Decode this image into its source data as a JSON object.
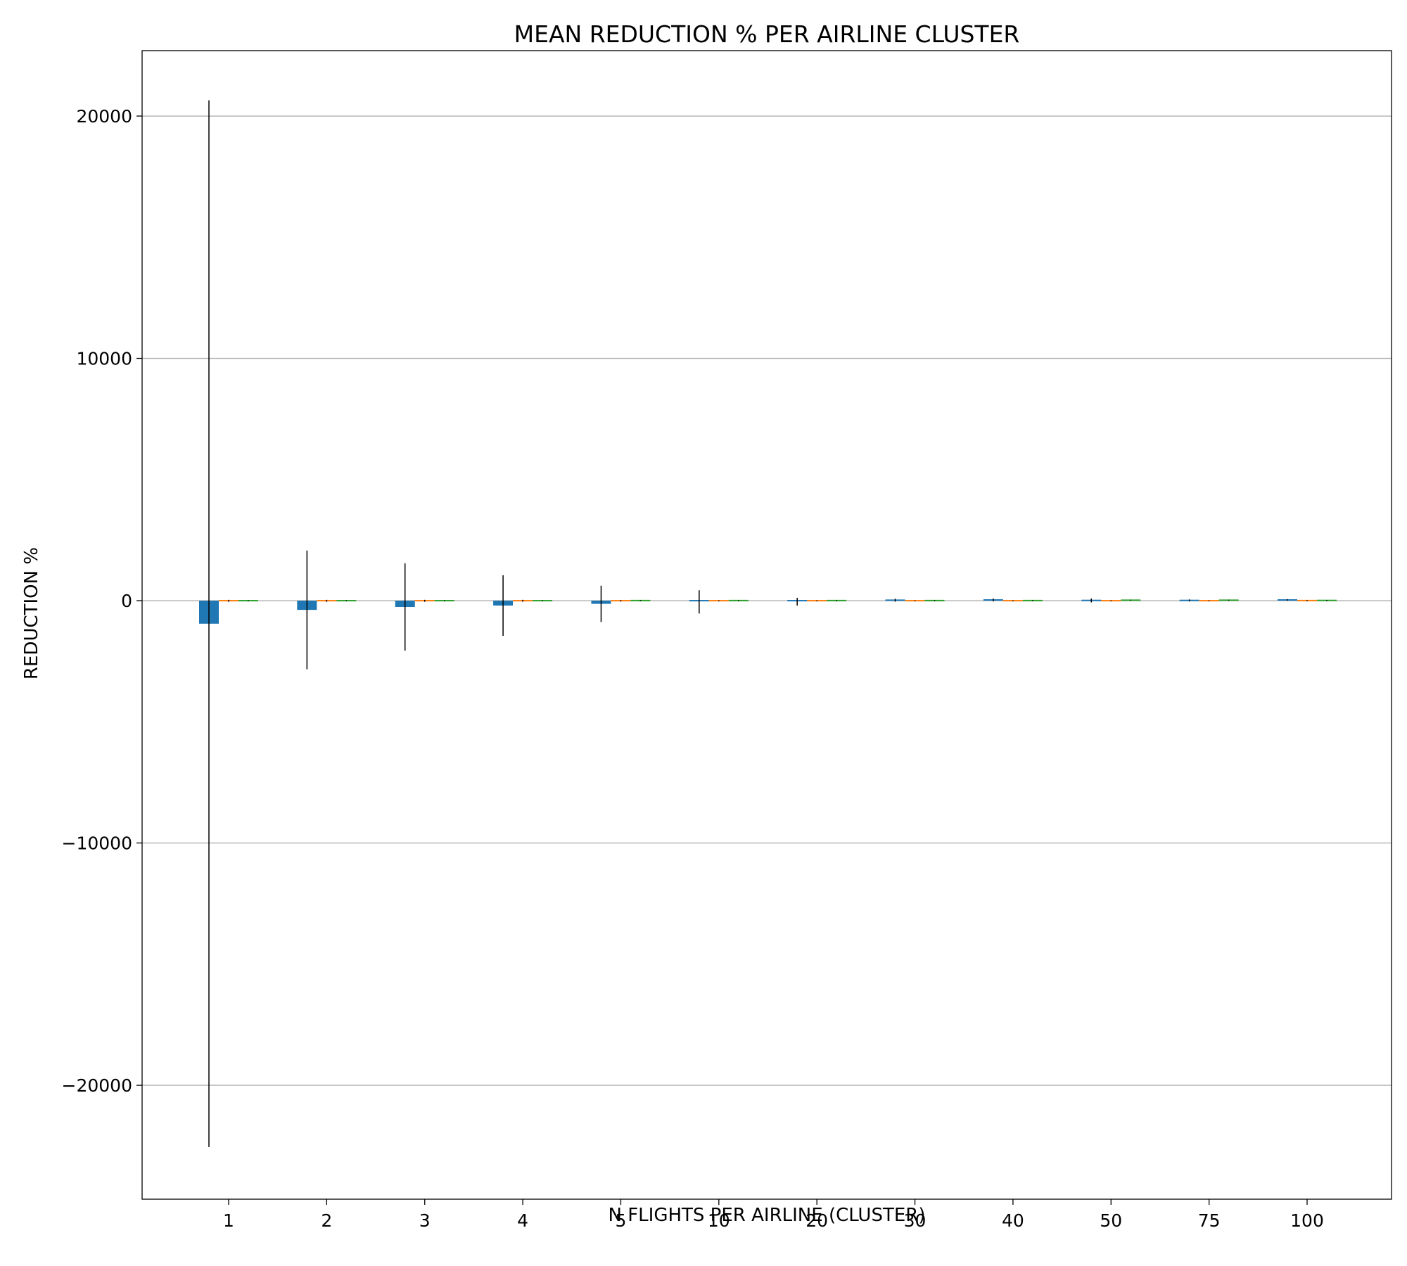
{
  "chart_data": {
    "type": "bar",
    "title": "MEAN REDUCTION % PER AIRLINE CLUSTER",
    "xlabel": "N FLIGHTS PER AIRLINE (CLUSTER)",
    "ylabel": "REDUCTION %",
    "categories": [
      "1",
      "2",
      "3",
      "4",
      "5",
      "10",
      "20",
      "30",
      "40",
      "50",
      "75",
      "100"
    ],
    "ylim": [
      -24700,
      22700
    ],
    "yticks": [
      20000,
      10000,
      0,
      -10000,
      -20000
    ],
    "ytick_labels": [
      "20000",
      "10000",
      "0",
      "−10000",
      "−20000"
    ],
    "grid": "y",
    "series": [
      {
        "color": "#1f77b4",
        "values": [
          -950,
          -380,
          -260,
          -200,
          -130,
          -50,
          -40,
          20,
          30,
          10,
          10,
          30
        ],
        "err_low": [
          21600,
          2450,
          1800,
          1250,
          750,
          480,
          160,
          60,
          60,
          80,
          40,
          30
        ],
        "err_high": [
          21600,
          2450,
          1800,
          1250,
          750,
          480,
          160,
          60,
          60,
          80,
          40,
          30
        ]
      },
      {
        "color": "#ff7f0e",
        "values": [
          -5,
          -5,
          -5,
          -5,
          -5,
          -5,
          -5,
          -5,
          -5,
          -5,
          -5,
          5
        ],
        "err_low": [
          40,
          40,
          40,
          40,
          30,
          20,
          20,
          20,
          20,
          20,
          20,
          20
        ],
        "err_high": [
          40,
          40,
          40,
          40,
          30,
          20,
          20,
          20,
          20,
          20,
          20,
          20
        ]
      },
      {
        "color": "#2ca02c",
        "values": [
          -5,
          -5,
          -5,
          -5,
          5,
          5,
          5,
          5,
          5,
          20,
          20,
          10
        ],
        "err_low": [
          20,
          20,
          20,
          20,
          20,
          20,
          20,
          20,
          20,
          20,
          20,
          20
        ],
        "err_high": [
          20,
          20,
          20,
          20,
          20,
          20,
          20,
          20,
          20,
          20,
          20,
          20
        ]
      }
    ]
  }
}
